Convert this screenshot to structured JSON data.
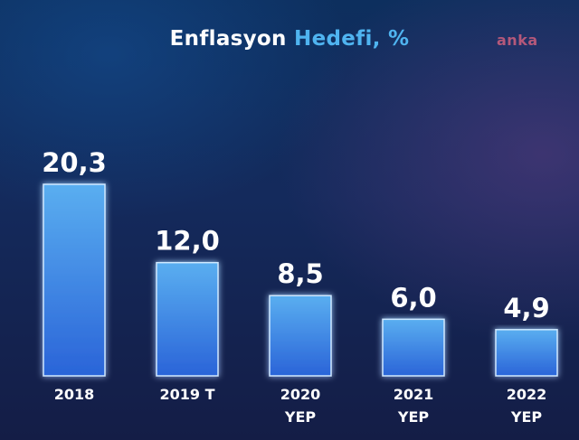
{
  "title": {
    "part1": "Enflasyon",
    "part2": "Hedefi, %"
  },
  "logo": "anka",
  "colors": {
    "bar_top": "#5aaef0",
    "bar_bottom": "#2a64d8",
    "title_accent": "#4fb4f0",
    "logo": "#b4587a"
  },
  "chart_data": {
    "type": "bar",
    "categories": [
      [
        "2018"
      ],
      [
        "2019 T"
      ],
      [
        "2020",
        "YEP"
      ],
      [
        "2021",
        "YEP"
      ],
      [
        "2022",
        "YEP"
      ]
    ],
    "values": [
      20.3,
      12.0,
      8.5,
      6.0,
      4.9
    ],
    "value_labels": [
      "20,3",
      "12,0",
      "8,5",
      "6,0",
      "4,9"
    ],
    "title": "Enflasyon Hedefi, %",
    "xlabel": "",
    "ylabel": "",
    "grid": false,
    "legend": "none"
  }
}
